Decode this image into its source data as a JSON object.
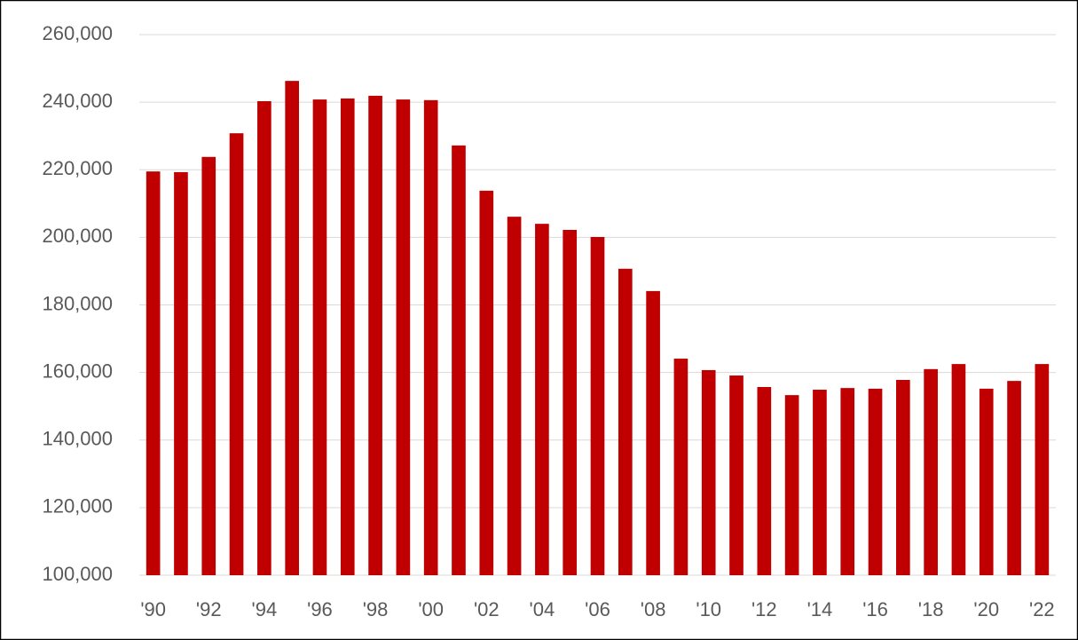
{
  "chart_data": {
    "type": "bar",
    "categories": [
      "'90",
      null,
      "'92",
      null,
      "'94",
      null,
      "'96",
      null,
      "'98",
      null,
      "'00",
      null,
      "'02",
      null,
      "'04",
      null,
      "'06",
      null,
      "'08",
      null,
      "'10",
      null,
      "'12",
      null,
      "'14",
      null,
      "'16",
      null,
      "'18",
      null,
      "'20",
      null,
      "'22"
    ],
    "values": [
      219500,
      219300,
      223800,
      230800,
      240300,
      246300,
      240800,
      241100,
      241900,
      240800,
      240600,
      227200,
      213800,
      206100,
      204000,
      202200,
      200100,
      190700,
      184100,
      164100,
      160700,
      159100,
      155700,
      153300,
      154900,
      155400,
      155200,
      157800,
      161000,
      162500,
      155200,
      157500,
      162500
    ],
    "color": "#c00000",
    "ylim": [
      100000,
      260000
    ],
    "yticks": [
      {
        "value": 100000,
        "label": "100,000"
      },
      {
        "value": 120000,
        "label": "120,000"
      },
      {
        "value": 140000,
        "label": "140,000"
      },
      {
        "value": 160000,
        "label": "160,000"
      },
      {
        "value": 180000,
        "label": "180,000"
      },
      {
        "value": 200000,
        "label": "200,000"
      },
      {
        "value": 220000,
        "label": "220,000"
      },
      {
        "value": 240000,
        "label": "240,000"
      },
      {
        "value": 260000,
        "label": "260,000"
      }
    ],
    "grid": true
  }
}
